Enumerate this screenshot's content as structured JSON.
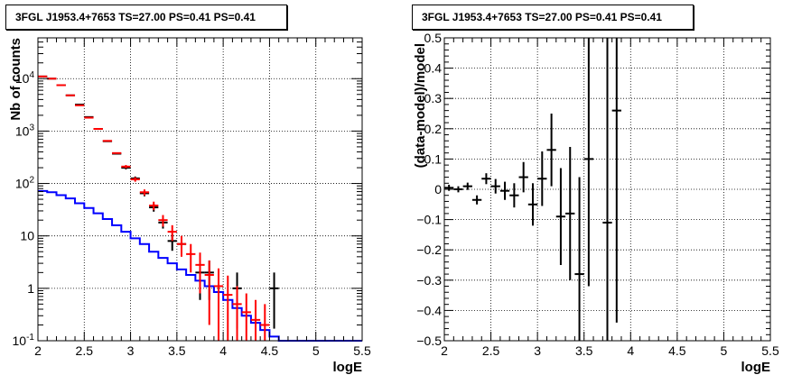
{
  "chart_data": [
    {
      "type": "histogram",
      "title": "3FGL J1953.4+7653 TS=27.00 PS=0.41 PS=0.41",
      "xlabel": "logE",
      "ylabel": "Nb of counts",
      "xlim": [
        2,
        5.5
      ],
      "ylim": [
        0.1,
        60000
      ],
      "yscale": "log",
      "grid": true,
      "x_ticks": [
        "2",
        "2.5",
        "3",
        "3.5",
        "4",
        "4.5",
        "5",
        "5.5"
      ],
      "y_ticks": [
        {
          "value": 0.1,
          "base": "10",
          "exp": "-1"
        },
        {
          "value": 1,
          "base": "1",
          "exp": ""
        },
        {
          "value": 10,
          "base": "10",
          "exp": ""
        },
        {
          "value": 100,
          "base": "10",
          "exp": "2"
        },
        {
          "value": 1000,
          "base": "10",
          "exp": "3"
        },
        {
          "value": 10000,
          "base": "10",
          "exp": "4"
        }
      ],
      "bin_width": 0.1,
      "series": [
        {
          "color": "#ff0000",
          "style": "points",
          "x": [
            2.05,
            2.15,
            2.25,
            2.35,
            2.45,
            2.55,
            2.65,
            2.75,
            2.85,
            2.95,
            3.05,
            3.15,
            3.25,
            3.35,
            3.45,
            3.55,
            3.65,
            3.75,
            3.85,
            3.95,
            4.05,
            4.15,
            4.25,
            4.35,
            4.45
          ],
          "y": [
            11000,
            10000,
            7500,
            4800,
            3100,
            1800,
            1100,
            650,
            380,
            210,
            120,
            68,
            38,
            20,
            12,
            7,
            4.5,
            2.8,
            1.8,
            1.1,
            0.75,
            0.5,
            0.35,
            0.25,
            0.2
          ],
          "err_low": [
            0,
            0,
            0,
            0,
            0,
            0,
            0,
            0,
            0,
            15,
            12,
            9,
            7,
            5,
            4,
            3,
            2.5,
            2,
            1.6,
            1.0,
            0.7,
            0.45,
            0.32,
            0.22,
            0.18
          ],
          "err_high": [
            0,
            0,
            0,
            0,
            0,
            0,
            0,
            0,
            0,
            15,
            12,
            9,
            7,
            5,
            4,
            3,
            2.5,
            2,
            1.6,
            1.3,
            1.0,
            0.6,
            0.45,
            0.35,
            0.3
          ]
        },
        {
          "color": "#000000",
          "style": "points",
          "x": [
            2.05,
            2.15,
            2.25,
            2.35,
            2.45,
            2.55,
            2.65,
            2.75,
            2.85,
            2.95,
            3.05,
            3.15,
            3.25,
            3.35,
            3.45,
            3.55,
            3.75,
            3.85,
            4.15,
            4.55
          ],
          "y": [
            11000,
            10000,
            7500,
            4800,
            3200,
            1850,
            1100,
            640,
            370,
            200,
            125,
            65,
            35,
            18,
            8,
            7,
            2,
            2,
            1,
            1
          ],
          "err_low": [
            0,
            0,
            0,
            0,
            0,
            0,
            0,
            0,
            0,
            14,
            11,
            8,
            6,
            4.2,
            2.8,
            2.6,
            1.4,
            1.4,
            0.83,
            0.83
          ],
          "err_high": [
            0,
            0,
            0,
            0,
            0,
            0,
            0,
            0,
            0,
            14,
            11,
            8,
            6,
            4.2,
            2.8,
            2.6,
            1.4,
            1.4,
            1.0,
            1.0
          ]
        },
        {
          "color": "#0000ff",
          "style": "step",
          "x": [
            2.05,
            2.15,
            2.25,
            2.35,
            2.45,
            2.55,
            2.65,
            2.75,
            2.85,
            2.95,
            3.05,
            3.15,
            3.25,
            3.35,
            3.45,
            3.55,
            3.65,
            3.75,
            3.85,
            3.95,
            4.05,
            4.15,
            4.25,
            4.35,
            4.45,
            4.55,
            4.65,
            4.75,
            4.85,
            4.95,
            5.05,
            5.15,
            5.25,
            5.35,
            5.45
          ],
          "y": [
            72,
            68,
            60,
            52,
            42,
            34,
            27,
            21,
            16,
            12,
            9,
            7,
            5,
            3.8,
            3,
            2.3,
            1.8,
            1.4,
            1.1,
            0.85,
            0.6,
            0.42,
            0.3,
            0.22,
            0.16,
            0.12,
            0.1,
            0.1,
            0.1,
            0.1,
            0.1,
            0.1,
            0.1,
            0.1,
            0.1
          ]
        }
      ]
    },
    {
      "type": "scatter",
      "title": "3FGL J1953.4+7653 TS=27.00 PS=0.41 PS=0.41",
      "xlabel": "logE",
      "ylabel": "(data-model)/model",
      "xlim": [
        2,
        5.5
      ],
      "ylim": [
        -0.5,
        0.5
      ],
      "grid": true,
      "x_ticks": [
        "2",
        "2.5",
        "3",
        "3.5",
        "4",
        "4.5",
        "5",
        "5.5"
      ],
      "y_ticks": [
        "-0.5",
        "-0.4",
        "-0.3",
        "-0.2",
        "-0.1",
        "0",
        "0.1",
        "0.2",
        "0.3",
        "0.4",
        "0.5"
      ],
      "bin_width": 0.1,
      "series": [
        {
          "color": "#000000",
          "x": [
            2.05,
            2.15,
            2.25,
            2.35,
            2.45,
            2.55,
            2.65,
            2.75,
            2.85,
            2.95,
            3.05,
            3.15,
            3.25,
            3.35,
            3.45,
            3.55,
            3.75,
            3.85
          ],
          "y": [
            0.005,
            0.0,
            0.01,
            -0.035,
            0.035,
            0.01,
            -0.005,
            -0.02,
            0.04,
            -0.05,
            0.035,
            0.13,
            -0.09,
            -0.08,
            -0.28,
            0.1,
            -0.11,
            0.26
          ],
          "err": [
            0.01,
            0.01,
            0.012,
            0.015,
            0.018,
            0.024,
            0.03,
            0.04,
            0.05,
            0.07,
            0.09,
            0.12,
            0.16,
            0.22,
            0.32,
            0.42,
            0.7,
            0.7
          ]
        }
      ]
    }
  ]
}
